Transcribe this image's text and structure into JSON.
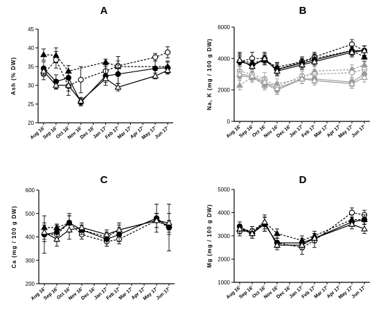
{
  "chart_data": [
    {
      "panel": "A",
      "type": "line",
      "ylabel": "Ash (% DW)",
      "ylim": [
        20,
        45
      ],
      "yticks": [
        20,
        25,
        30,
        35,
        40,
        45
      ],
      "categories": [
        "Aug 16'",
        "Sep 16'",
        "Oct 16'",
        "Nov 16'",
        "Dec 16'",
        "Jan 17'",
        "Feb 17'",
        "Mar 17'",
        "Apr 17'",
        "May 17'",
        "Jun 17'"
      ],
      "series": [
        {
          "marker": "filled-triangle",
          "dash": "dashed",
          "color": "#000000",
          "values": [
            38.2,
            38.0,
            33.8,
            null,
            null,
            36.2,
            35.0,
            null,
            null,
            null,
            35.0
          ],
          "errors": [
            1.5,
            2.0,
            1.5,
            null,
            null,
            0.8,
            1.5,
            null,
            null,
            null,
            1.5
          ]
        },
        {
          "marker": "open-circle",
          "dash": "dashed",
          "color": "#000000",
          "values": [
            33.0,
            36.8,
            29.8,
            31.5,
            null,
            33.8,
            35.2,
            null,
            null,
            37.5,
            38.8
          ],
          "errors": [
            1.5,
            2.2,
            2.5,
            3.5,
            null,
            2.5,
            2.5,
            null,
            null,
            1.0,
            1.5
          ]
        },
        {
          "marker": "filled-circle",
          "dash": "solid",
          "color": "#000000",
          "values": [
            34.5,
            31.0,
            32.0,
            25.5,
            null,
            32.5,
            33.0,
            null,
            null,
            34.5,
            34.7
          ],
          "errors": [
            1.8,
            1.8,
            2.0,
            1.0,
            null,
            2.5,
            2.5,
            null,
            null,
            2.0,
            1.5
          ]
        },
        {
          "marker": "open-triangle",
          "dash": "solid",
          "color": "#000000",
          "values": [
            33.8,
            30.0,
            30.0,
            25.8,
            null,
            31.8,
            29.5,
            null,
            null,
            32.5,
            34.0
          ],
          "errors": [
            1.0,
            1.0,
            1.5,
            1.0,
            null,
            1.0,
            1.0,
            null,
            null,
            0.8,
            1.0
          ]
        }
      ]
    },
    {
      "panel": "B",
      "type": "line",
      "ylabel": "Na, K (mg / 100 g DW)",
      "ylim": [
        0,
        6000
      ],
      "yticks": [
        0,
        2000,
        4000,
        6000
      ],
      "categories": [
        "Aug 16'",
        "Sep 16'",
        "Oct 16'",
        "Nov 16'",
        "Dec 16'",
        "Jan 17'",
        "Feb 17'",
        "Mar 17'",
        "Apr 17'",
        "May 17'",
        "Jun 17'"
      ],
      "series": [
        {
          "marker": "filled-triangle",
          "dash": "dashed",
          "color": "#000000",
          "values": [
            3900,
            3700,
            3900,
            3450,
            null,
            3800,
            4000,
            null,
            null,
            4500,
            4100
          ],
          "errors": [
            400,
            400,
            300,
            300,
            null,
            300,
            300,
            null,
            null,
            300,
            300
          ]
        },
        {
          "marker": "open-circle",
          "dash": "dashed",
          "color": "#000000",
          "values": [
            3800,
            4000,
            4000,
            3300,
            null,
            3800,
            4100,
            null,
            null,
            4900,
            4500
          ],
          "errors": [
            600,
            400,
            400,
            400,
            null,
            300,
            300,
            null,
            null,
            300,
            300
          ]
        },
        {
          "marker": "filled-circle",
          "dash": "solid",
          "color": "#000000",
          "values": [
            3800,
            3600,
            3900,
            3300,
            null,
            3700,
            3900,
            null,
            null,
            4500,
            4500
          ],
          "errors": [
            300,
            300,
            300,
            300,
            null,
            300,
            300,
            null,
            null,
            300,
            300
          ]
        },
        {
          "marker": "open-triangle",
          "dash": "solid",
          "color": "#000000",
          "values": [
            3900,
            3500,
            4000,
            3200,
            null,
            3600,
            3800,
            null,
            null,
            4400,
            4500
          ],
          "errors": [
            300,
            300,
            300,
            300,
            null,
            300,
            300,
            null,
            null,
            300,
            300
          ]
        },
        {
          "marker": "filled-triangle",
          "dash": "dashed",
          "color": "#9a9a9a",
          "values": [
            2300,
            2800,
            2300,
            2400,
            null,
            2700,
            3200,
            null,
            null,
            3300,
            3600
          ],
          "errors": [
            300,
            300,
            300,
            300,
            null,
            300,
            300,
            null,
            null,
            300,
            300
          ]
        },
        {
          "marker": "open-circle",
          "dash": "dashed",
          "color": "#9a9a9a",
          "values": [
            3200,
            3000,
            2700,
            2200,
            null,
            2900,
            3000,
            null,
            null,
            3100,
            3300
          ],
          "errors": [
            300,
            300,
            400,
            300,
            null,
            300,
            300,
            null,
            null,
            300,
            300
          ]
        },
        {
          "marker": "filled-circle",
          "dash": "solid",
          "color": "#9a9a9a",
          "values": [
            2900,
            2800,
            2400,
            2000,
            null,
            2700,
            2700,
            null,
            null,
            2500,
            3000
          ],
          "errors": [
            300,
            300,
            300,
            300,
            null,
            300,
            300,
            null,
            null,
            300,
            300
          ]
        },
        {
          "marker": "open-triangle",
          "dash": "solid",
          "color": "#9a9a9a",
          "values": [
            3000,
            2900,
            2500,
            2100,
            null,
            2700,
            2600,
            null,
            null,
            2400,
            2800
          ],
          "errors": [
            300,
            300,
            300,
            300,
            null,
            300,
            300,
            null,
            null,
            300,
            300
          ]
        }
      ]
    },
    {
      "panel": "C",
      "type": "line",
      "ylabel": "Ca (mg / 100 g DW)",
      "ylim": [
        200,
        600
      ],
      "yticks": [
        200,
        300,
        400,
        500,
        600
      ],
      "categories": [
        "Aug 16'",
        "Sep 16'",
        "Oct 16'",
        "Nov 16'",
        "Dec 16'",
        "Jan 17'",
        "Feb 17'",
        "Mar 17'",
        "Apr 17'",
        "May 17'",
        "Jun 17'"
      ],
      "series": [
        {
          "marker": "filled-triangle",
          "dash": "dashed",
          "color": "#000000",
          "values": [
            440,
            440,
            460,
            430,
            null,
            400,
            430,
            null,
            null,
            470,
            450
          ],
          "errors": [
            20,
            15,
            30,
            20,
            null,
            20,
            20,
            null,
            null,
            30,
            20
          ]
        },
        {
          "marker": "open-circle",
          "dash": "dashed",
          "color": "#000000",
          "values": [
            410,
            410,
            460,
            410,
            null,
            380,
            390,
            null,
            null,
            470,
            440
          ],
          "errors": [
            30,
            30,
            30,
            20,
            null,
            20,
            20,
            null,
            null,
            30,
            30
          ]
        },
        {
          "marker": "filled-circle",
          "dash": "solid",
          "color": "#000000",
          "values": [
            410,
            420,
            460,
            430,
            null,
            390,
            410,
            null,
            null,
            480,
            440
          ],
          "errors": [
            80,
            30,
            40,
            20,
            null,
            30,
            30,
            null,
            null,
            60,
            100
          ]
        },
        {
          "marker": "open-triangle",
          "dash": "solid",
          "color": "#000000",
          "values": [
            420,
            390,
            430,
            440,
            null,
            410,
            430,
            null,
            null,
            470,
            460
          ],
          "errors": [
            30,
            30,
            40,
            20,
            null,
            20,
            30,
            null,
            null,
            30,
            40
          ]
        }
      ]
    },
    {
      "panel": "D",
      "type": "line",
      "ylabel": "Mg (mg / 100 g DW)",
      "ylim": [
        1000,
        5000
      ],
      "yticks": [
        1000,
        2000,
        3000,
        4000,
        5000
      ],
      "categories": [
        "Aug 16'",
        "Sep 16'",
        "Oct 16'",
        "Nov 16'",
        "Dec 16'",
        "Jan 17'",
        "Feb 17'",
        "Mar 17'",
        "Apr 17'",
        "May 17'",
        "Jun 17'"
      ],
      "series": [
        {
          "marker": "filled-triangle",
          "dash": "dashed",
          "color": "#000000",
          "values": [
            3300,
            3200,
            3600,
            3100,
            null,
            2800,
            3000,
            null,
            null,
            3700,
            3700
          ],
          "errors": [
            200,
            200,
            200,
            200,
            null,
            200,
            200,
            null,
            null,
            200,
            200
          ]
        },
        {
          "marker": "open-circle",
          "dash": "dashed",
          "color": "#000000",
          "values": [
            3200,
            3200,
            3500,
            2700,
            null,
            2500,
            2800,
            null,
            null,
            4000,
            3900
          ],
          "errors": [
            200,
            200,
            300,
            200,
            null,
            300,
            300,
            null,
            null,
            200,
            200
          ]
        },
        {
          "marker": "filled-circle",
          "dash": "solid",
          "color": "#000000",
          "values": [
            3400,
            3100,
            3500,
            2700,
            null,
            2700,
            2900,
            null,
            null,
            3600,
            3700
          ],
          "errors": [
            200,
            200,
            300,
            200,
            null,
            200,
            200,
            null,
            null,
            200,
            200
          ]
        },
        {
          "marker": "open-triangle",
          "dash": "solid",
          "color": "#000000",
          "values": [
            3300,
            3100,
            3600,
            2600,
            null,
            2600,
            2900,
            null,
            null,
            3500,
            3300
          ],
          "errors": [
            200,
            200,
            300,
            200,
            null,
            200,
            200,
            null,
            null,
            200,
            200
          ]
        }
      ]
    }
  ]
}
